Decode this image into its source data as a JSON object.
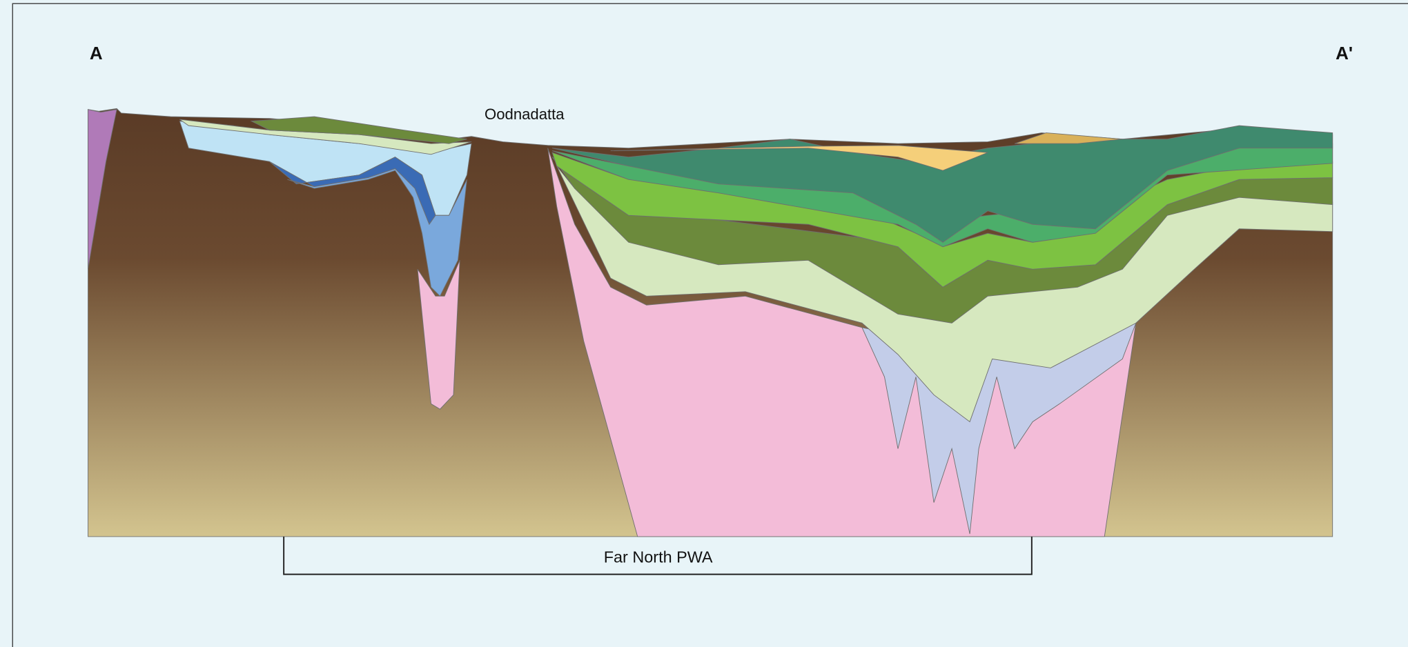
{
  "section": {
    "start_label": "A",
    "end_label": "A'"
  },
  "labels": {
    "town": "Oodnadatta",
    "region": "Far North PWA"
  }
}
